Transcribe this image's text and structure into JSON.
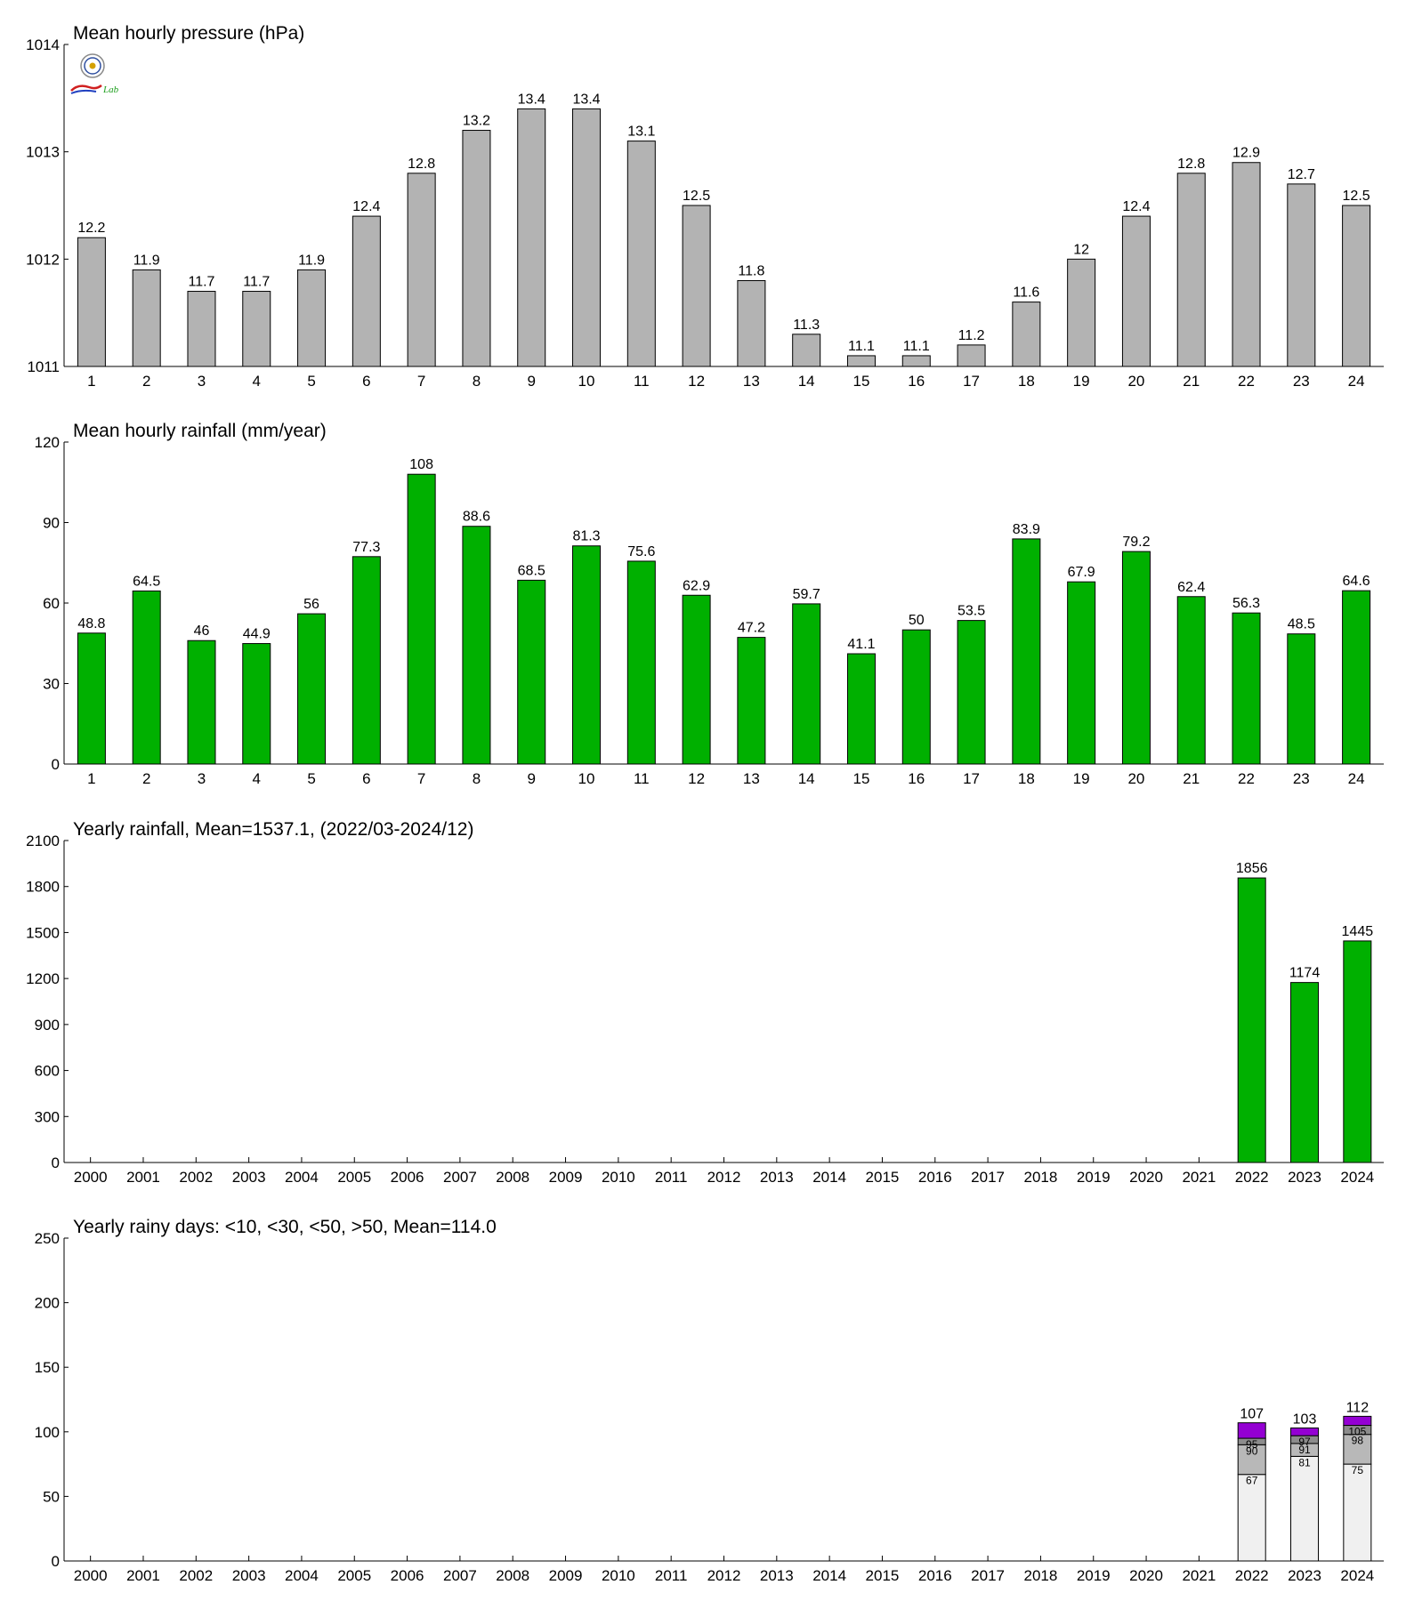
{
  "colors": {
    "pressure_bar": "#b3b3b3",
    "rain_bar": "#00b000",
    "days_lt10": "#f0f0f0",
    "days_lt30": "#b8b8b8",
    "days_lt50": "#8c8c8c",
    "days_gt50": "#9400d3"
  },
  "logo": {
    "text": "Lab"
  },
  "chart_data": [
    {
      "type": "bar",
      "title": "Mean hourly pressure (hPa)",
      "ylim": [
        1011,
        1014
      ],
      "yticks": [
        "1011",
        "1012",
        "1013",
        "1014"
      ],
      "categories": [
        "1",
        "2",
        "3",
        "4",
        "5",
        "6",
        "7",
        "8",
        "9",
        "10",
        "11",
        "12",
        "13",
        "14",
        "15",
        "16",
        "17",
        "18",
        "19",
        "20",
        "21",
        "22",
        "23",
        "24"
      ],
      "values": [
        1012.2,
        1011.9,
        1011.7,
        1011.7,
        1011.9,
        1012.4,
        1012.8,
        1013.2,
        1013.4,
        1013.4,
        1013.1,
        1012.5,
        1011.8,
        1011.3,
        1011.1,
        1011.1,
        1011.2,
        1011.6,
        1012.0,
        1012.4,
        1012.8,
        1012.9,
        1012.7,
        1012.5
      ],
      "labels": [
        "12.2",
        "11.9",
        "11.7",
        "11.7",
        "11.9",
        "12.4",
        "12.8",
        "13.2",
        "13.4",
        "13.4",
        "13.1",
        "12.5",
        "11.8",
        "11.3",
        "11.1",
        "11.1",
        "11.2",
        "11.6",
        "12",
        "12.4",
        "12.8",
        "12.9",
        "12.7",
        "12.5"
      ]
    },
    {
      "type": "bar",
      "title": "Mean hourly rainfall (mm/year)",
      "ylim": [
        0,
        120
      ],
      "yticks": [
        "0",
        "30",
        "60",
        "90",
        "120"
      ],
      "categories": [
        "1",
        "2",
        "3",
        "4",
        "5",
        "6",
        "7",
        "8",
        "9",
        "10",
        "11",
        "12",
        "13",
        "14",
        "15",
        "16",
        "17",
        "18",
        "19",
        "20",
        "21",
        "22",
        "23",
        "24"
      ],
      "values": [
        48.8,
        64.5,
        46,
        44.9,
        56,
        77.3,
        108,
        88.6,
        68.5,
        81.3,
        75.6,
        62.9,
        47.2,
        59.7,
        41.1,
        50,
        53.5,
        83.9,
        67.9,
        79.2,
        62.4,
        56.3,
        48.5,
        64.6
      ],
      "labels": [
        "48.8",
        "64.5",
        "46",
        "44.9",
        "56",
        "77.3",
        "108",
        "88.6",
        "68.5",
        "81.3",
        "75.6",
        "62.9",
        "47.2",
        "59.7",
        "41.1",
        "50",
        "53.5",
        "83.9",
        "67.9",
        "79.2",
        "62.4",
        "56.3",
        "48.5",
        "64.6"
      ]
    },
    {
      "type": "bar",
      "title": "Yearly rainfall, Mean=1537.1, (2022/03-2024/12)",
      "ylim": [
        0,
        2100
      ],
      "yticks": [
        "0",
        "300",
        "600",
        "900",
        "1200",
        "1500",
        "1800",
        "2100"
      ],
      "categories": [
        "2000",
        "2001",
        "2002",
        "2003",
        "2004",
        "2005",
        "2006",
        "2007",
        "2008",
        "2009",
        "2010",
        "2011",
        "2012",
        "2013",
        "2014",
        "2015",
        "2016",
        "2017",
        "2018",
        "2019",
        "2020",
        "2021",
        "2022",
        "2023",
        "2024"
      ],
      "values": [
        null,
        null,
        null,
        null,
        null,
        null,
        null,
        null,
        null,
        null,
        null,
        null,
        null,
        null,
        null,
        null,
        null,
        null,
        null,
        null,
        null,
        null,
        1856,
        1174,
        1445
      ],
      "labels": [
        "",
        "",
        "",
        "",
        "",
        "",
        "",
        "",
        "",
        "",
        "",
        "",
        "",
        "",
        "",
        "",
        "",
        "",
        "",
        "",
        "",
        "",
        "1856",
        "1174",
        "1445"
      ]
    },
    {
      "type": "bar",
      "stacked": true,
      "title": "Yearly rainy days: <10, <30, <50, >50, Mean=114.0",
      "ylim": [
        0,
        250
      ],
      "yticks": [
        "0",
        "50",
        "100",
        "150",
        "200",
        "250"
      ],
      "categories": [
        "2000",
        "2001",
        "2002",
        "2003",
        "2004",
        "2005",
        "2006",
        "2007",
        "2008",
        "2009",
        "2010",
        "2011",
        "2012",
        "2013",
        "2014",
        "2015",
        "2016",
        "2017",
        "2018",
        "2019",
        "2020",
        "2021",
        "2022",
        "2023",
        "2024"
      ],
      "stack_points": [
        {
          "year": "2022",
          "cumulative": [
            67,
            90,
            95,
            107
          ],
          "labels": [
            "67",
            "90",
            "95"
          ],
          "total_label": "107"
        },
        {
          "year": "2023",
          "cumulative": [
            81,
            91,
            97,
            103
          ],
          "labels": [
            "81",
            "91",
            "97"
          ],
          "total_label": "103"
        },
        {
          "year": "2024",
          "cumulative": [
            75,
            98,
            105,
            112
          ],
          "labels": [
            "75",
            "98",
            "105"
          ],
          "total_label": "112"
        }
      ]
    }
  ]
}
